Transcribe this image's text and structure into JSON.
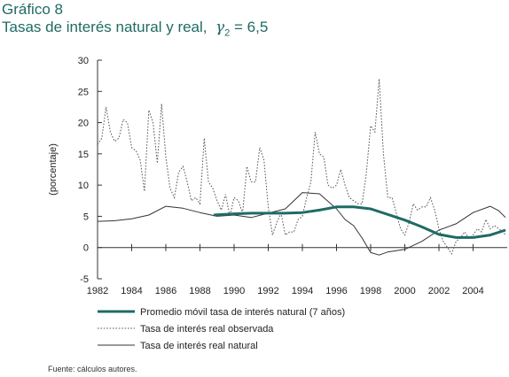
{
  "header": {
    "label": "Gráfico 8",
    "title": "Tasas de interés natural y real,",
    "param_symbol": "γ",
    "param_subscript": "2",
    "param_value": "= 6,5"
  },
  "source": "Fuente: cálculos autores.",
  "colors": {
    "natural_avg": "#1f6b63",
    "observed": "#555555",
    "natural": "#333333",
    "axis": "#333333"
  },
  "chart_data": {
    "type": "line",
    "ylabel": "(porcentaje)",
    "xlabel": "",
    "xlim": [
      1982,
      2006
    ],
    "ylim": [
      -5,
      30
    ],
    "xticks": [
      1982,
      1984,
      1986,
      1988,
      1990,
      1992,
      1994,
      1996,
      1998,
      2000,
      2002,
      2004
    ],
    "yticks": [
      -5,
      0,
      5,
      10,
      15,
      20,
      25,
      30
    ],
    "legend_position": "bottom",
    "series": [
      {
        "name": "Promedio móvil tasa de interés natural (7 años)",
        "style": "thick",
        "x": [
          1988.8,
          1990,
          1991,
          1992,
          1993,
          1994,
          1995,
          1996,
          1997,
          1998,
          1999,
          2000,
          2001,
          2002,
          2003,
          2004,
          2005,
          2005.9
        ],
        "y": [
          5.2,
          5.4,
          5.5,
          5.5,
          5.5,
          5.6,
          6.0,
          6.5,
          6.5,
          6.2,
          5.3,
          4.4,
          3.3,
          2.1,
          1.6,
          1.6,
          2.0,
          2.8
        ]
      },
      {
        "name": "Tasa de interés real observada",
        "style": "dotted",
        "x": [
          1982,
          1982.25,
          1982.5,
          1982.75,
          1983,
          1983.25,
          1983.5,
          1983.75,
          1984,
          1984.25,
          1984.5,
          1984.75,
          1985,
          1985.25,
          1985.5,
          1985.75,
          1986,
          1986.25,
          1986.5,
          1986.75,
          1987,
          1987.25,
          1987.5,
          1987.75,
          1988,
          1988.25,
          1988.5,
          1988.75,
          1989,
          1989.25,
          1989.5,
          1989.75,
          1990,
          1990.25,
          1990.5,
          1990.75,
          1991,
          1991.25,
          1991.5,
          1991.75,
          1992,
          1992.25,
          1992.5,
          1992.75,
          1993,
          1993.25,
          1993.5,
          1993.75,
          1994,
          1994.25,
          1994.5,
          1994.75,
          1995,
          1995.25,
          1995.5,
          1995.75,
          1996,
          1996.25,
          1996.5,
          1996.75,
          1997,
          1997.25,
          1997.5,
          1997.75,
          1998,
          1998.25,
          1998.5,
          1998.75,
          1999,
          1999.25,
          1999.5,
          1999.75,
          2000,
          2000.25,
          2000.5,
          2000.75,
          2001,
          2001.25,
          2001.5,
          2001.75,
          2002,
          2002.25,
          2002.5,
          2002.75,
          2003,
          2003.25,
          2003.5,
          2003.75,
          2004,
          2004.25,
          2004.5,
          2004.75,
          2005,
          2005.25,
          2005.5,
          2005.75,
          2005.9
        ],
        "y": [
          16.5,
          17.5,
          22.5,
          18.5,
          17.0,
          17.5,
          20.5,
          20.0,
          16.0,
          15.5,
          14.0,
          9.0,
          22.0,
          20.0,
          13.5,
          23.0,
          14.5,
          9.5,
          8.0,
          12.0,
          13.0,
          10.5,
          7.5,
          8.0,
          7.0,
          17.5,
          10.5,
          9.5,
          7.5,
          6.0,
          8.5,
          5.0,
          8.0,
          7.5,
          5.5,
          13.0,
          10.5,
          10.5,
          16.0,
          14.0,
          6.5,
          2.0,
          4.0,
          5.5,
          2.0,
          2.5,
          2.5,
          4.5,
          5.0,
          8.0,
          10.5,
          18.5,
          15.0,
          14.5,
          10.0,
          9.5,
          10.0,
          12.5,
          10.0,
          8.0,
          7.5,
          7.0,
          7.0,
          12.0,
          19.5,
          18.5,
          27.0,
          15.0,
          8.0,
          8.0,
          5.5,
          3.0,
          2.0,
          4.0,
          7.0,
          6.0,
          6.5,
          6.5,
          8.0,
          6.0,
          3.0,
          1.0,
          0.0,
          -1.0,
          1.0,
          1.5,
          2.5,
          1.5,
          2.0,
          3.0,
          2.5,
          4.5,
          3.0,
          3.5,
          3.0,
          2.5,
          2.0
        ]
      },
      {
        "name": "Tasa de interés real natural",
        "style": "thin",
        "x": [
          1982,
          1983,
          1984,
          1985,
          1986,
          1987,
          1988,
          1989,
          1990,
          1991,
          1992,
          1993,
          1994,
          1995,
          1996,
          1996.5,
          1997,
          1997.5,
          1998,
          1998.5,
          1999,
          1999.5,
          2000,
          2001,
          2002,
          2003,
          2004,
          2005,
          2005.5,
          2005.9
        ],
        "y": [
          4.2,
          4.3,
          4.6,
          5.2,
          6.6,
          6.3,
          5.6,
          5.0,
          5.2,
          4.8,
          5.5,
          6.2,
          8.8,
          8.6,
          6.2,
          4.5,
          3.5,
          1.5,
          -0.8,
          -1.2,
          -0.7,
          -0.5,
          -0.3,
          1.0,
          2.8,
          3.8,
          5.6,
          6.6,
          5.9,
          4.8
        ]
      }
    ]
  }
}
